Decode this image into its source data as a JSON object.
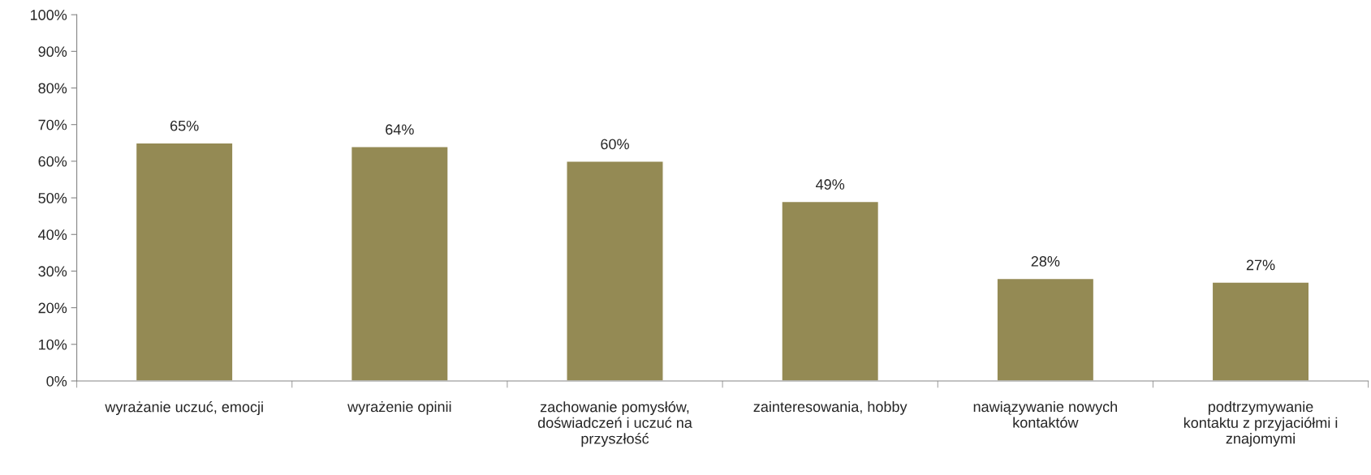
{
  "chart_data": {
    "type": "bar",
    "categories": [
      "wyrażanie uczuć, emocji",
      "wyrażenie opinii",
      "zachowanie pomysłów,\ndoświadczeń i uczuć na\nprzyszłość",
      "zainteresowania, hobby",
      "nawiązywanie nowych\nkontaktów",
      "podtrzymywanie\nkontaktu z przyjaciółmi i\nznajomymi"
    ],
    "values": [
      65,
      64,
      60,
      49,
      28,
      27
    ],
    "value_labels": [
      "65%",
      "64%",
      "60%",
      "49%",
      "28%",
      "27%"
    ],
    "color": "#948a54",
    "ylim": [
      0,
      100
    ],
    "yticks": [
      {
        "value": 0,
        "label": "0%"
      },
      {
        "value": 10,
        "label": "10%"
      },
      {
        "value": 20,
        "label": "20%"
      },
      {
        "value": 30,
        "label": "30%"
      },
      {
        "value": 40,
        "label": "40%"
      },
      {
        "value": 50,
        "label": "50%"
      },
      {
        "value": 60,
        "label": "60%"
      },
      {
        "value": 70,
        "label": "70%"
      },
      {
        "value": 80,
        "label": "80%"
      },
      {
        "value": 90,
        "label": "90%"
      },
      {
        "value": 100,
        "label": "100%"
      }
    ],
    "grid": false,
    "legend": false
  }
}
